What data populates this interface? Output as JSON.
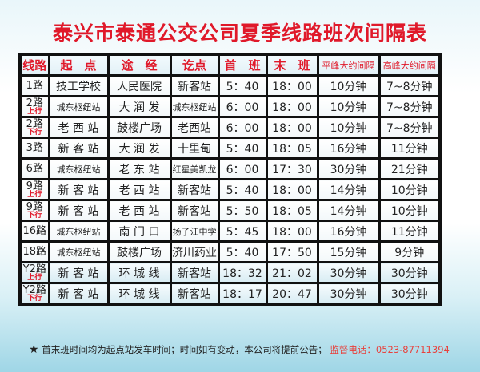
{
  "title": "泰兴市泰通公交公司夏季线路班次间隔表",
  "headers": [
    "线路",
    "起　点",
    "途　经",
    "讫点",
    "首　班",
    "末　班",
    "平峰大约间隔",
    "高峰大约间隔"
  ],
  "rows": [
    {
      "route": "1路",
      "dir": "",
      "start": "技工学校",
      "via": "人民医院",
      "end": "新客站",
      "first": "5：40",
      "last": "18：00",
      "offpeak": "10分钟",
      "peak": "7~8分钟"
    },
    {
      "route": "2路",
      "dir": "上行",
      "start": "城东枢纽站",
      "via": "大 润 发",
      "end": "城东枢纽站",
      "first": "6：00",
      "last": "18：00",
      "offpeak": "10分钟",
      "peak": "7~8分钟"
    },
    {
      "route": "2路",
      "dir": "下行",
      "start": "老 西 站",
      "via": "鼓楼广场",
      "end": "老西站",
      "first": "6：00",
      "last": "18：00",
      "offpeak": "10分钟",
      "peak": "7~8分钟"
    },
    {
      "route": "3路",
      "dir": "",
      "start": "新 客 站",
      "via": "大 润 发",
      "end": "十里甸",
      "first": "5：40",
      "last": "18：05",
      "offpeak": "16分钟",
      "peak": "11分钟"
    },
    {
      "route": "6路",
      "dir": "",
      "start": "城东枢纽站",
      "via": "老 东 站",
      "end": "红星美凯龙",
      "first": "6：00",
      "last": "17：30",
      "offpeak": "30分钟",
      "peak": "21分钟"
    },
    {
      "route": "9路",
      "dir": "上行",
      "start": "新 客 站",
      "via": "老 西 站",
      "end": "新客站",
      "first": "5：40",
      "last": "18：00",
      "offpeak": "14分钟",
      "peak": "10分钟"
    },
    {
      "route": "9路",
      "dir": "下行",
      "start": "新 客 站",
      "via": "老 西 站",
      "end": "新客站",
      "first": "5：50",
      "last": "18：05",
      "offpeak": "14分钟",
      "peak": "10分钟"
    },
    {
      "route": "16路",
      "dir": "",
      "start": "城东枢纽站",
      "via": "南 门 口",
      "end": "扬子江中学",
      "first": "5：45",
      "last": "18：00",
      "offpeak": "16分钟",
      "peak": "11分钟"
    },
    {
      "route": "18路",
      "dir": "",
      "start": "城东枢纽站",
      "via": "鼓楼广场",
      "end": "济川药业",
      "first": "5：40",
      "last": "17：50",
      "offpeak": "15分钟",
      "peak": "9分钟"
    },
    {
      "route": "Y2路",
      "dir": "上行",
      "start": "新 客 站",
      "via": "环 城 线",
      "end": "新客站",
      "first": "18：32",
      "last": "21：02",
      "offpeak": "30分钟",
      "peak": "30分钟"
    },
    {
      "route": "Y2路",
      "dir": "下行",
      "start": "新 客 站",
      "via": "环 城 线",
      "end": "新客站",
      "first": "18：17",
      "last": "20：47",
      "offpeak": "30分钟",
      "peak": "30分钟"
    }
  ],
  "footer": {
    "star": "★",
    "note": "首末班时间均为起点站发车时间；时间如有变动，本公司将提前公告；",
    "hotline": "监督电话：0523-87711394"
  },
  "colors": {
    "title": "#e0192a",
    "hotline": "#e8413c"
  }
}
